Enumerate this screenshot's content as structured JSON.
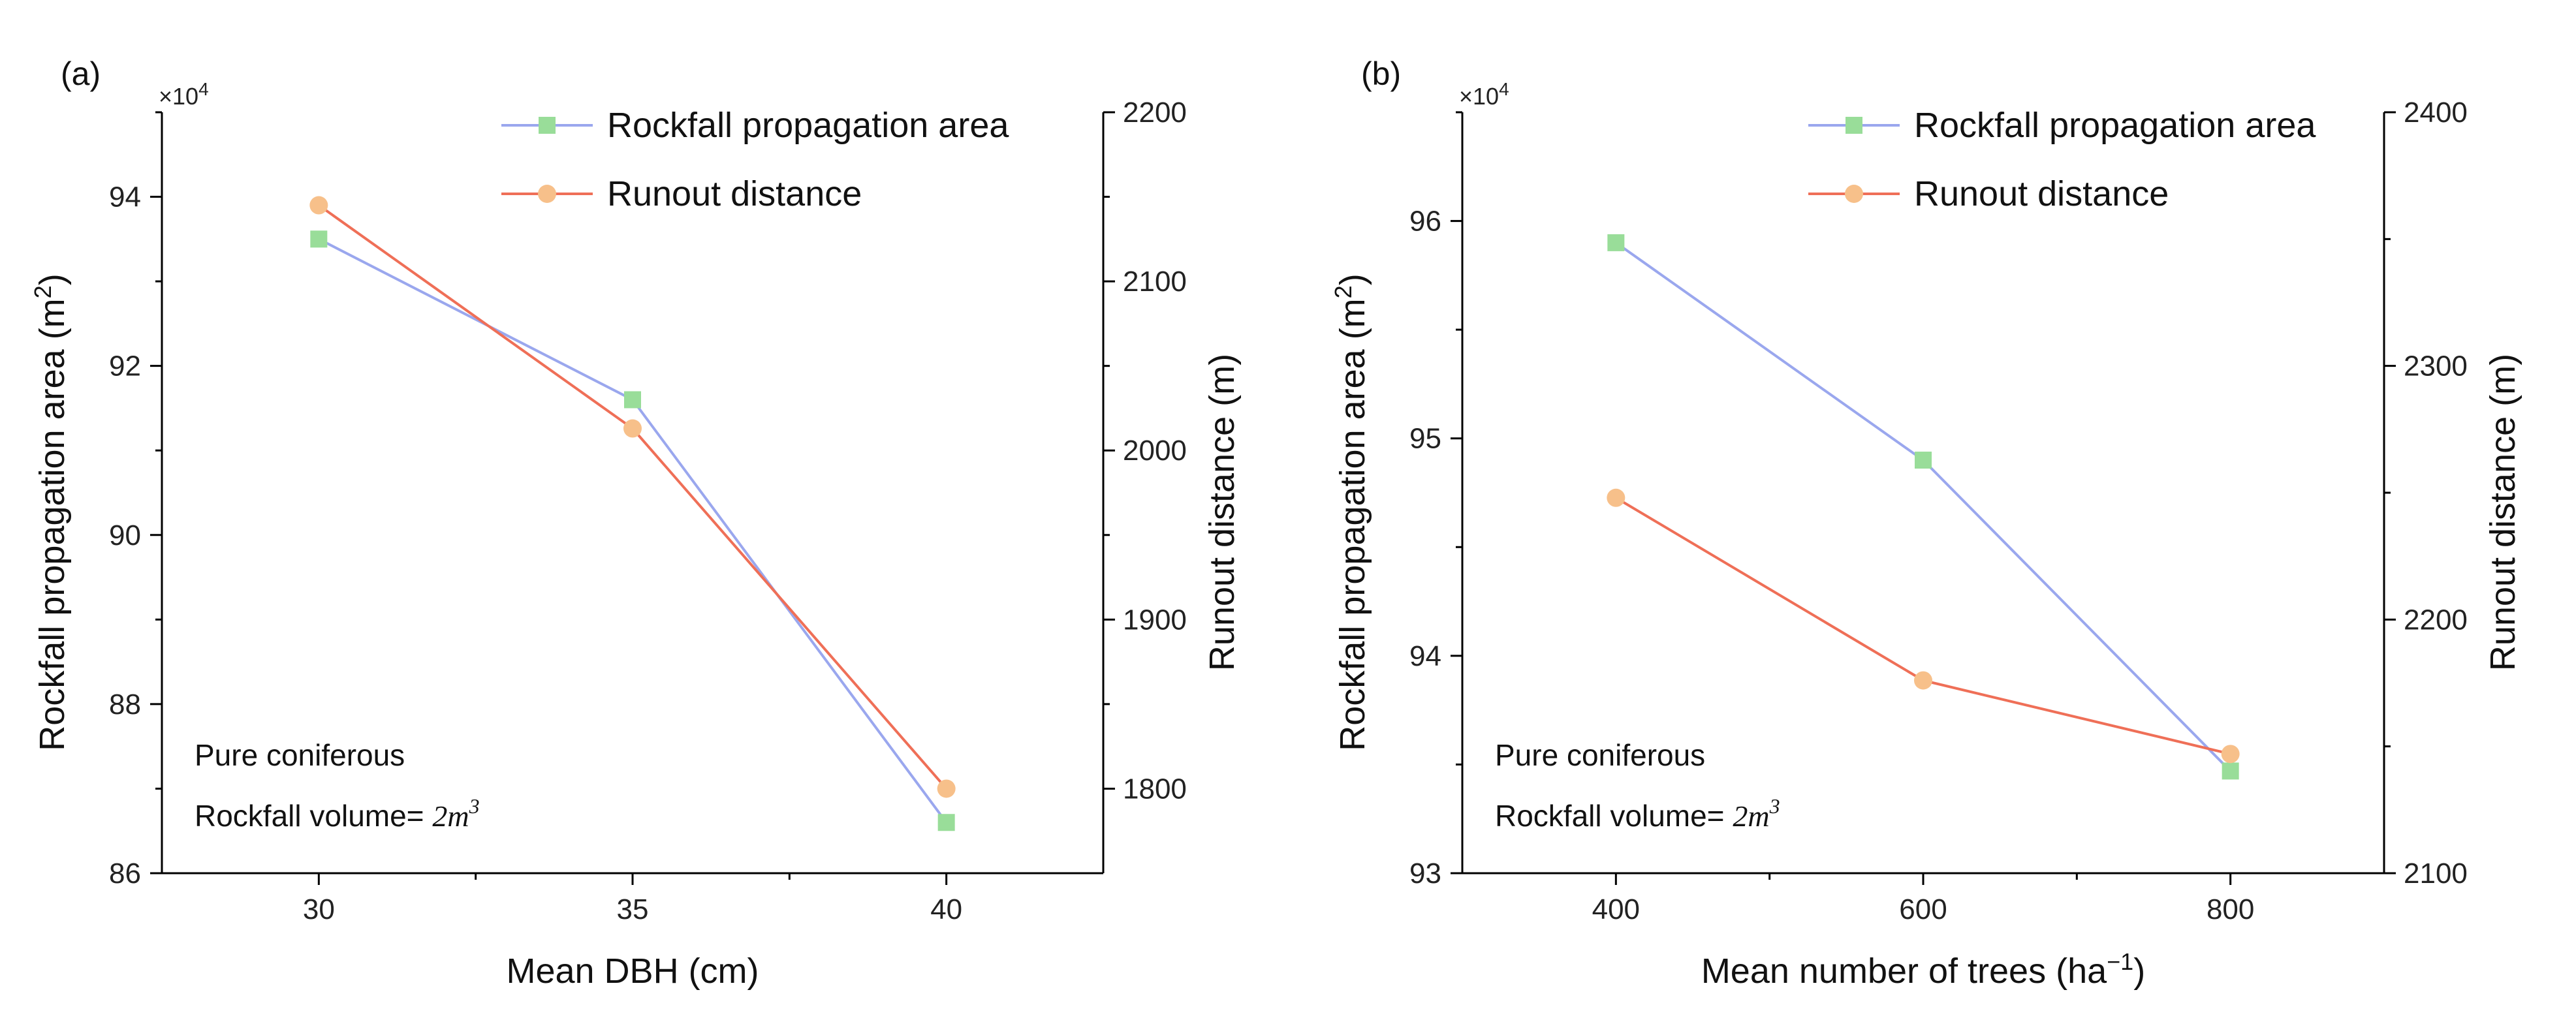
{
  "colors": {
    "area": "#9aa7ee",
    "area_marker": "#99dd99",
    "runout": "#ef6f57",
    "runout_marker": "#f7c08a"
  },
  "chart_data": [
    {
      "type": "line",
      "panel_label": "(a)",
      "left_multiplier": "×10",
      "left_multiplier_exp": "4",
      "xlabel": "Mean DBH (cm)",
      "ylabel_left": "Rockfall propagation area (m",
      "ylabel_left_sup": "2",
      "ylabel_left_close": ")",
      "ylabel_right": "Runout distance (m)",
      "xlim": [
        27.5,
        42.5
      ],
      "x_ticks": [
        30,
        35,
        40
      ],
      "x_minor_ticks": [
        32.5,
        37.5
      ],
      "ylim_left": [
        86,
        95
      ],
      "y_left_ticks": [
        86,
        88,
        90,
        92,
        94
      ],
      "ylim_right": [
        1750,
        2200
      ],
      "y_right_ticks": [
        1800,
        1900,
        2000,
        2100,
        2200
      ],
      "series": [
        {
          "name": "Rockfall propagation area",
          "axis": "left",
          "marker": "square",
          "x": [
            30,
            35,
            40
          ],
          "values": [
            93.5,
            91.6,
            86.6
          ]
        },
        {
          "name": "Runout distance",
          "axis": "right",
          "marker": "circle",
          "x": [
            30,
            35,
            40
          ],
          "values": [
            2145,
            2013,
            1800
          ]
        }
      ],
      "annotation_line1": "Pure coniferous",
      "annotation_line2_text": "Rockfall volume= ",
      "annotation_line2_value": "2",
      "annotation_line2_unit": "m",
      "annotation_line2_exp": "3"
    },
    {
      "type": "line",
      "panel_label": "(b)",
      "left_multiplier": "×10",
      "left_multiplier_exp": "4",
      "xlabel": "Mean number of trees (ha",
      "xlabel_sup": "−1",
      "xlabel_close": ")",
      "ylabel_left": "Rockfall propagation area (m",
      "ylabel_left_sup": "2",
      "ylabel_left_close": ")",
      "ylabel_right": "Runout distance (m)",
      "xlim": [
        300,
        900
      ],
      "x_ticks": [
        400,
        600,
        800
      ],
      "x_minor_ticks": [
        500,
        700
      ],
      "ylim_left": [
        93,
        96.5
      ],
      "y_left_ticks": [
        93,
        94,
        95,
        96
      ],
      "ylim_right": [
        2100,
        2400
      ],
      "y_right_ticks": [
        2100,
        2200,
        2300,
        2400
      ],
      "series": [
        {
          "name": "Rockfall propagation area",
          "axis": "left",
          "marker": "square",
          "x": [
            400,
            600,
            800
          ],
          "values": [
            95.9,
            94.9,
            93.47
          ]
        },
        {
          "name": "Runout distance",
          "axis": "right",
          "marker": "circle",
          "x": [
            400,
            600,
            800
          ],
          "values": [
            2248,
            2176,
            2147
          ]
        }
      ],
      "annotation_line1": "Pure coniferous",
      "annotation_line2_text": "Rockfall volume= ",
      "annotation_line2_value": "2",
      "annotation_line2_unit": "m",
      "annotation_line2_exp": "3"
    }
  ]
}
